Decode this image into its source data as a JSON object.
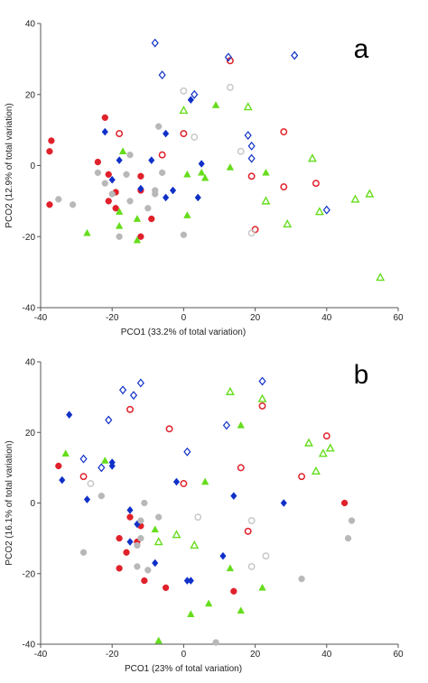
{
  "chart_data": [
    {
      "type": "scatter",
      "panel_label": "a",
      "xlabel": "PCO1 (33.2% of total variation)",
      "ylabel": "PCO2 (12.9% of total variation)",
      "xlim": [
        -40,
        60
      ],
      "ylim": [
        -40,
        40
      ],
      "xticks": [
        -40,
        -20,
        0,
        20,
        40,
        60
      ],
      "yticks": [
        -40,
        -20,
        0,
        20,
        40
      ],
      "grid": false,
      "series": [
        {
          "marker": "circle-filled",
          "color": "#e0202a",
          "points": [
            [
              -37,
              7
            ],
            [
              -37.5,
              4
            ],
            [
              -37.5,
              -11
            ],
            [
              -22,
              13.5
            ],
            [
              -24,
              1
            ],
            [
              -21,
              -2.5
            ],
            [
              -21,
              -10
            ],
            [
              -19,
              -7.5
            ],
            [
              -19,
              -12
            ],
            [
              -12,
              -3
            ],
            [
              -12,
              -7
            ],
            [
              -12,
              -20
            ],
            [
              -9,
              -15
            ]
          ]
        },
        {
          "marker": "circle-open",
          "color": "#e0202a",
          "points": [
            [
              -18,
              9
            ],
            [
              -6,
              3
            ],
            [
              0,
              9
            ],
            [
              13,
              29.5
            ],
            [
              19,
              -3
            ],
            [
              20,
              -18
            ],
            [
              28,
              -6
            ],
            [
              28,
              9.5
            ],
            [
              37,
              -5
            ]
          ]
        },
        {
          "marker": "diamond-filled",
          "color": "#1030c8",
          "points": [
            [
              -22,
              9.5
            ],
            [
              -20,
              -4
            ],
            [
              -18,
              1.5
            ],
            [
              -12,
              -6.5
            ],
            [
              -9,
              1.5
            ],
            [
              -5,
              9
            ],
            [
              -5,
              -9
            ],
            [
              -3,
              -7
            ],
            [
              2,
              18.5
            ],
            [
              4,
              -9
            ],
            [
              5,
              0.5
            ]
          ]
        },
        {
          "marker": "diamond-open",
          "color": "#1030c8",
          "points": [
            [
              -8,
              34.5
            ],
            [
              -6,
              25.5
            ],
            [
              3,
              20
            ],
            [
              12.5,
              30.5
            ],
            [
              18,
              8.5
            ],
            [
              19,
              5.5
            ],
            [
              19,
              2
            ],
            [
              31,
              31
            ],
            [
              40,
              -12.5
            ]
          ]
        },
        {
          "marker": "triangle-filled",
          "color": "#66dd1c",
          "points": [
            [
              -27,
              -19
            ],
            [
              -18,
              -13
            ],
            [
              -18,
              -17
            ],
            [
              -17,
              4
            ],
            [
              -13,
              -21
            ],
            [
              -13,
              -15
            ],
            [
              1,
              -2.5
            ],
            [
              1,
              -14
            ],
            [
              5,
              -2
            ],
            [
              6,
              -3.5
            ],
            [
              9,
              17
            ],
            [
              13,
              -0.5
            ],
            [
              23,
              -2
            ]
          ]
        },
        {
          "marker": "triangle-open",
          "color": "#66dd1c",
          "points": [
            [
              0,
              15.5
            ],
            [
              18,
              16.5
            ],
            [
              23,
              -10
            ],
            [
              29,
              -16.5
            ],
            [
              36,
              2
            ],
            [
              38,
              -13
            ],
            [
              48,
              -9.5
            ],
            [
              52,
              -8
            ],
            [
              55,
              -31.5
            ]
          ]
        },
        {
          "marker": "circle-filled",
          "color": "#b8b8b8",
          "points": [
            [
              -35,
              -9.5
            ],
            [
              -31,
              -11
            ],
            [
              -24,
              -2
            ],
            [
              -22,
              -5
            ],
            [
              -20,
              -8
            ],
            [
              -16,
              -2.5
            ],
            [
              -15,
              -10
            ],
            [
              -10,
              -12
            ],
            [
              -8,
              -7
            ],
            [
              -7,
              11
            ],
            [
              -6,
              -2
            ],
            [
              -18,
              -20
            ],
            [
              0,
              -19.5
            ],
            [
              -15,
              3
            ],
            [
              -8,
              -8
            ]
          ]
        },
        {
          "marker": "circle-open",
          "color": "#c8c8c8",
          "points": [
            [
              0,
              21
            ],
            [
              13,
              22
            ],
            [
              3,
              8
            ],
            [
              16,
              4
            ],
            [
              19,
              -19
            ]
          ]
        }
      ]
    },
    {
      "type": "scatter",
      "panel_label": "b",
      "xlabel": "PCO1 (23% of total variation)",
      "ylabel": "PCO2 (16.1% of total variation)",
      "xlim": [
        -40,
        60
      ],
      "ylim": [
        -40,
        40
      ],
      "xticks": [
        -40,
        -20,
        0,
        20,
        40,
        60
      ],
      "yticks": [
        -40,
        -20,
        0,
        20,
        40
      ],
      "grid": false,
      "series": [
        {
          "marker": "circle-filled",
          "color": "#e0202a",
          "points": [
            [
              -35,
              10.5
            ],
            [
              -18,
              -10
            ],
            [
              -16,
              -14
            ],
            [
              -15,
              -4
            ],
            [
              -13,
              -11
            ],
            [
              -18,
              -18.5
            ],
            [
              -12,
              -6.5
            ],
            [
              -11,
              -22
            ],
            [
              -5,
              -24
            ],
            [
              14,
              -25
            ],
            [
              45,
              0
            ]
          ]
        },
        {
          "marker": "circle-open",
          "color": "#e0202a",
          "points": [
            [
              -28,
              7.5
            ],
            [
              -15,
              26.5
            ],
            [
              -4,
              21
            ],
            [
              0,
              5.5
            ],
            [
              16,
              10
            ],
            [
              18,
              -8
            ],
            [
              22,
              27.5
            ],
            [
              33,
              7.5
            ],
            [
              40,
              19
            ]
          ]
        },
        {
          "marker": "diamond-filled",
          "color": "#1030c8",
          "points": [
            [
              -32,
              25
            ],
            [
              -34,
              6.5
            ],
            [
              -27,
              1
            ],
            [
              -20,
              11.5
            ],
            [
              -20,
              10.5
            ],
            [
              -15,
              -2
            ],
            [
              -15,
              -11
            ],
            [
              -13,
              -6
            ],
            [
              -8,
              -17
            ],
            [
              -2,
              6
            ],
            [
              1,
              -22
            ],
            [
              2,
              -22
            ],
            [
              11,
              -15
            ],
            [
              14,
              2
            ],
            [
              28,
              0
            ]
          ]
        },
        {
          "marker": "diamond-open",
          "color": "#1030c8",
          "points": [
            [
              -17,
              32
            ],
            [
              -14,
              30.5
            ],
            [
              -12,
              34
            ],
            [
              -28,
              12.5
            ],
            [
              -21,
              23.5
            ],
            [
              -23,
              10
            ],
            [
              1,
              14.5
            ],
            [
              12,
              22
            ],
            [
              22,
              34.5
            ]
          ]
        },
        {
          "marker": "triangle-filled",
          "color": "#66dd1c",
          "points": [
            [
              -33,
              14
            ],
            [
              -22,
              12
            ],
            [
              -8,
              -7.5
            ],
            [
              -7,
              -39
            ],
            [
              2,
              -31.5
            ],
            [
              6,
              6
            ],
            [
              7,
              -28.5
            ],
            [
              13,
              -18.5
            ],
            [
              16,
              22
            ],
            [
              16,
              -30.5
            ],
            [
              22,
              -24
            ]
          ]
        },
        {
          "marker": "triangle-open",
          "color": "#66dd1c",
          "points": [
            [
              -7,
              -11
            ],
            [
              -2,
              -9
            ],
            [
              3,
              -12
            ],
            [
              13,
              31.5
            ],
            [
              22,
              29.5
            ],
            [
              35,
              17
            ],
            [
              37,
              9
            ],
            [
              39,
              14
            ],
            [
              41,
              15.5
            ]
          ]
        },
        {
          "marker": "circle-filled",
          "color": "#b8b8b8",
          "points": [
            [
              -28,
              -14
            ],
            [
              -23,
              2
            ],
            [
              -11,
              0
            ],
            [
              -10,
              -19
            ],
            [
              -12,
              -5
            ],
            [
              -13,
              -18
            ],
            [
              -7,
              -4
            ],
            [
              -13,
              -12
            ],
            [
              -12,
              -10
            ],
            [
              9,
              -39.5
            ],
            [
              33,
              -21.5
            ],
            [
              47,
              -5
            ],
            [
              46,
              -10
            ]
          ]
        },
        {
          "marker": "circle-open",
          "color": "#c8c8c8",
          "points": [
            [
              -26,
              5.5
            ],
            [
              4,
              -4
            ],
            [
              19,
              -5
            ],
            [
              19,
              -18
            ],
            [
              23,
              -15
            ]
          ]
        }
      ]
    }
  ]
}
